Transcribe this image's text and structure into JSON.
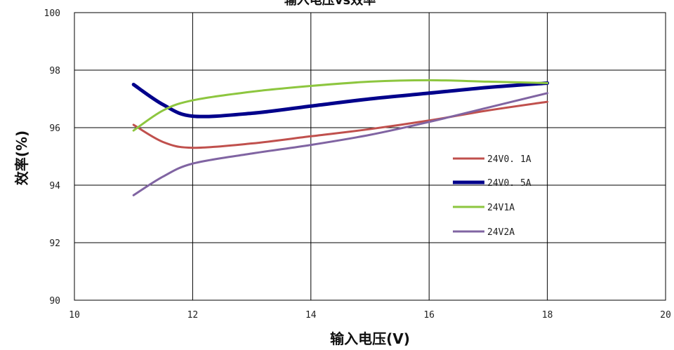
{
  "chart_data": {
    "type": "line",
    "title": "输入电压vs效率",
    "xlabel": "输入电压(V)",
    "ylabel": "效率(%)",
    "xlim": [
      10,
      20
    ],
    "ylim": [
      90,
      100
    ],
    "x_ticks": [
      "10",
      "12",
      "14",
      "16",
      "18",
      "20"
    ],
    "y_ticks": [
      "90",
      "92",
      "94",
      "96",
      "98",
      "100"
    ],
    "grid": true,
    "legend_position": "right-middle",
    "series": [
      {
        "name": "24V0.1A",
        "color": "#c0504d",
        "points": [
          [
            11,
            96.1
          ],
          [
            11.5,
            95.5
          ],
          [
            12,
            95.3
          ],
          [
            13,
            95.45
          ],
          [
            14,
            95.7
          ],
          [
            15,
            95.95
          ],
          [
            16,
            96.25
          ],
          [
            17,
            96.6
          ],
          [
            18,
            96.9
          ]
        ]
      },
      {
        "name": "24V0.5A",
        "color": "#00008b",
        "points": [
          [
            11,
            97.5
          ],
          [
            11.5,
            96.8
          ],
          [
            12,
            96.4
          ],
          [
            13,
            96.5
          ],
          [
            14,
            96.75
          ],
          [
            15,
            97.0
          ],
          [
            16,
            97.2
          ],
          [
            17,
            97.4
          ],
          [
            18,
            97.55
          ]
        ]
      },
      {
        "name": "24V1A",
        "color": "#8dc63f",
        "points": [
          [
            11,
            95.9
          ],
          [
            11.5,
            96.6
          ],
          [
            12,
            96.95
          ],
          [
            13,
            97.25
          ],
          [
            14,
            97.45
          ],
          [
            15,
            97.6
          ],
          [
            16,
            97.65
          ],
          [
            17,
            97.6
          ],
          [
            18,
            97.55
          ]
        ]
      },
      {
        "name": "24V2A",
        "color": "#8064a2",
        "points": [
          [
            11,
            93.65
          ],
          [
            11.5,
            94.3
          ],
          [
            12,
            94.75
          ],
          [
            13,
            95.1
          ],
          [
            14,
            95.4
          ],
          [
            15,
            95.75
          ],
          [
            16,
            96.2
          ],
          [
            17,
            96.7
          ],
          [
            18,
            97.2
          ]
        ]
      }
    ]
  }
}
